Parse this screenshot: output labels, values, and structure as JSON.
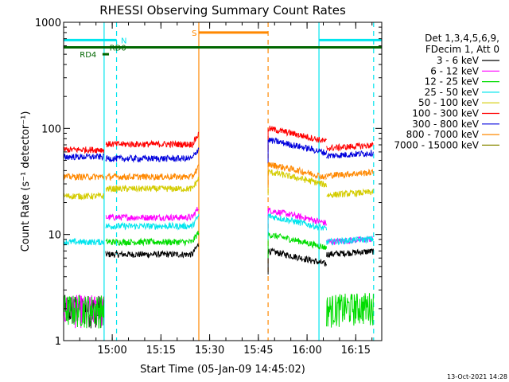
{
  "chart_data": {
    "type": "line",
    "title": "RHESSI Observing Summary Count Rates",
    "xlabel": "Start Time (05-Jan-09 14:45:02)",
    "ylabel": "Count Rate (s⁻¹ detector⁻¹)",
    "yscale": "log",
    "ylim": [
      1,
      1000
    ],
    "y_ticks": [
      {
        "value": 1,
        "label": "1"
      },
      {
        "value": 10,
        "label": "10"
      },
      {
        "value": 100,
        "label": "100"
      },
      {
        "value": 1000,
        "label": "1000"
      }
    ],
    "xlim": [
      "14:45:02",
      "16:23:00"
    ],
    "x_ticks": [
      {
        "value": "15:00",
        "label": "15:00"
      },
      {
        "value": "15:15",
        "label": "15:15"
      },
      {
        "value": "15:30",
        "label": "15:30"
      },
      {
        "value": "15:45",
        "label": "15:45"
      },
      {
        "value": "16:00",
        "label": "16:00"
      },
      {
        "value": "16:15",
        "label": "16:15"
      }
    ],
    "legend_header": [
      "Det 1,3,4,5,6,9,",
      "FDecim 1, Att 0"
    ],
    "legend_position": "right",
    "segments": [
      {
        "start": "14:45:02",
        "end": "14:57:30"
      },
      {
        "start": "14:58:00",
        "end": "15:26:40"
      },
      {
        "start": "15:48:00",
        "end": "16:06:00"
      },
      {
        "start": "16:06:00",
        "end": "16:20:30"
      }
    ],
    "series": [
      {
        "name": "3 - 6 keV",
        "color": "#000000",
        "values": [
          2.0,
          6.5,
          7.0,
          6.5
        ],
        "spike_end": 8
      },
      {
        "name": "6 - 12 keV",
        "color": "#ff00ff",
        "values": [
          2.0,
          14.5,
          17.0,
          8.5
        ],
        "spike_end": 22
      },
      {
        "name": "12 - 25 keV",
        "color": "#00dd00",
        "values": [
          2.0,
          8.5,
          10.0,
          2.0
        ],
        "spike_end": 12
      },
      {
        "name": "25 - 50 keV",
        "color": "#00e5ee",
        "values": [
          8.5,
          12.0,
          15.0,
          8.5
        ],
        "spike_end": 16
      },
      {
        "name": "50 - 100 keV",
        "color": "#d4cc00",
        "values": [
          23.0,
          27.0,
          39.0,
          23.5
        ],
        "spike_end": 32
      },
      {
        "name": "100 - 300 keV",
        "color": "#ff0000",
        "values": [
          63.0,
          71.0,
          100.0,
          65.0
        ],
        "spike_end": 85
      },
      {
        "name": "300 - 800 keV",
        "color": "#0000dd",
        "values": [
          54.0,
          52.0,
          78.0,
          55.0
        ],
        "spike_end": 60
      },
      {
        "name": "800 - 7000 keV",
        "color": "#ff8800",
        "values": [
          35.0,
          35.0,
          46.0,
          36.0
        ],
        "spike_end": 40
      },
      {
        "name": "7000 - 15000 keV",
        "color": "#888800",
        "values": [],
        "spike_end": null
      }
    ],
    "vertical_lines": [
      {
        "time": "14:57:30",
        "color": "#00e5ee",
        "style": "solid"
      },
      {
        "time": "15:01:20",
        "color": "#00e5ee",
        "style": "dashed"
      },
      {
        "time": "15:26:40",
        "color": "#ff8800",
        "style": "solid"
      },
      {
        "time": "15:48:00",
        "color": "#ff8800",
        "style": "dashed"
      },
      {
        "time": "16:03:40",
        "color": "#00e5ee",
        "style": "solid"
      },
      {
        "time": "16:20:30",
        "color": "#00e5ee",
        "style": "dashed"
      }
    ],
    "flag_bars": [
      {
        "label": "N",
        "color": "#00e5ee",
        "start": "14:45:02",
        "end": "15:01:20",
        "y": 680,
        "label_time": "15:02:40"
      },
      {
        "label": "N",
        "color": "#00e5ee",
        "start": "16:03:40",
        "end": "16:23:00",
        "y": 680,
        "label_time": null
      },
      {
        "label": "S",
        "color": "#ff8800",
        "start": "15:26:40",
        "end": "15:48:00",
        "y": 800,
        "label_time": "15:24:30"
      },
      {
        "label": "RD0",
        "color": "#006600",
        "start": "14:45:02",
        "end": "16:23:00",
        "y": 580,
        "label_time": "14:59:10"
      },
      {
        "label": "RD4",
        "color": "#006600",
        "start": "14:57:00",
        "end": "14:59:00",
        "y": 500,
        "label_time": "14:50:00"
      }
    ]
  },
  "footer_date": "13-Oct-2021 14:28"
}
